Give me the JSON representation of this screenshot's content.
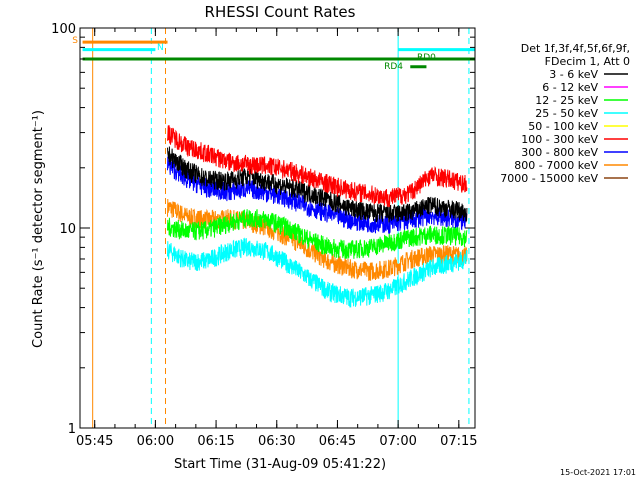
{
  "chart_data": {
    "type": "line",
    "title": "RHESSI Count Rates",
    "xlabel": "Start Time (31-Aug-09 05:41:22)",
    "ylabel": "Count Rate (s⁻¹ detector segment⁻¹)",
    "y_scale": "log",
    "ylim": [
      1,
      100
    ],
    "xlim": [
      "05:41:22",
      "07:19:00"
    ],
    "x_ticks": [
      "05:45",
      "06:00",
      "06:15",
      "06:30",
      "06:45",
      "07:00",
      "07:15"
    ],
    "y_ticks": [
      "1",
      "10",
      "100"
    ],
    "footer_date": "15-Oct-2021 17:01",
    "legend_header": [
      "Det 1f,3f,4f,5f,6f,9f,",
      "FDecim 1, Att 0"
    ],
    "series": [
      {
        "name": "3 - 6 keV",
        "color": "#000000",
        "x": [
          "06:03",
          "06:08",
          "06:13",
          "06:18",
          "06:23",
          "06:28",
          "06:33",
          "06:38",
          "06:43",
          "06:48",
          "06:53",
          "06:58",
          "07:03",
          "07:08",
          "07:13",
          "07:17"
        ],
        "y": [
          23.5,
          19.5,
          17.5,
          17.3,
          18.2,
          17.0,
          16.0,
          15.0,
          13.8,
          12.6,
          12.0,
          11.8,
          12.0,
          13.0,
          12.5,
          12.0
        ]
      },
      {
        "name": "6 - 12 keV",
        "color": "#ff00ff",
        "x": [],
        "y": []
      },
      {
        "name": "12 - 25 keV",
        "color": "#00ff00",
        "x": [
          "06:03",
          "06:08",
          "06:13",
          "06:18",
          "06:23",
          "06:28",
          "06:33",
          "06:38",
          "06:43",
          "06:48",
          "06:53",
          "06:58",
          "07:03",
          "07:08",
          "07:13",
          "07:17"
        ],
        "y": [
          10.2,
          9.6,
          9.8,
          10.6,
          11.3,
          11.0,
          10.0,
          8.8,
          8.0,
          7.8,
          8.0,
          8.5,
          9.0,
          9.3,
          9.2,
          9.0
        ]
      },
      {
        "name": "25 - 50 keV",
        "color": "#00ffff",
        "x": [
          "06:03",
          "06:08",
          "06:13",
          "06:18",
          "06:23",
          "06:28",
          "06:33",
          "06:38",
          "06:43",
          "06:48",
          "06:53",
          "06:58",
          "07:03",
          "07:08",
          "07:13",
          "07:17"
        ],
        "y": [
          7.8,
          6.8,
          6.9,
          7.7,
          8.1,
          7.6,
          6.6,
          5.6,
          4.8,
          4.5,
          4.6,
          4.9,
          5.6,
          6.3,
          6.7,
          7.0
        ]
      },
      {
        "name": "50 - 100 keV",
        "color": "#ffff00",
        "x": [],
        "y": []
      },
      {
        "name": "100 - 300 keV",
        "color": "#ff0000",
        "x": [
          "06:03",
          "06:08",
          "06:13",
          "06:18",
          "06:23",
          "06:28",
          "06:33",
          "06:38",
          "06:43",
          "06:48",
          "06:53",
          "06:58",
          "07:03",
          "07:08",
          "07:13",
          "07:17"
        ],
        "y": [
          30.0,
          25.5,
          23.5,
          21.5,
          20.8,
          20.5,
          19.5,
          18.0,
          16.6,
          15.5,
          14.8,
          14.2,
          15.0,
          18.5,
          17.5,
          16.5
        ]
      },
      {
        "name": "300 - 800 keV",
        "color": "#0000ff",
        "x": [
          "06:03",
          "06:08",
          "06:13",
          "06:18",
          "06:23",
          "06:28",
          "06:33",
          "06:38",
          "06:43",
          "06:48",
          "06:53",
          "06:58",
          "07:03",
          "07:08",
          "07:13",
          "07:17"
        ],
        "y": [
          20.8,
          17.5,
          15.8,
          15.2,
          15.8,
          15.0,
          14.0,
          12.8,
          11.8,
          11.0,
          10.6,
          10.5,
          11.0,
          11.6,
          11.2,
          10.8
        ]
      },
      {
        "name": "800 - 7000 keV",
        "color": "#ff8800",
        "x": [
          "06:03",
          "06:08",
          "06:13",
          "06:18",
          "06:23",
          "06:28",
          "06:33",
          "06:38",
          "06:43",
          "06:48",
          "06:53",
          "06:58",
          "07:03",
          "07:08",
          "07:13",
          "07:17"
        ],
        "y": [
          12.8,
          11.4,
          11.0,
          11.2,
          10.8,
          10.0,
          9.0,
          7.8,
          6.8,
          6.3,
          6.1,
          6.3,
          7.0,
          7.4,
          7.4,
          7.2
        ]
      },
      {
        "name": "7000 - 15000 keV",
        "color": "#8b4513",
        "x": [],
        "y": []
      }
    ],
    "annotations": [
      {
        "label": "S",
        "color": "#ff8800",
        "x_start": "05:42",
        "x_end": "06:03",
        "y": 85
      },
      {
        "label": "N",
        "color": "#00ffff",
        "x_start": "05:42",
        "x_end": "06:00",
        "y": 78
      },
      {
        "label": "",
        "color": "#00ffff",
        "x_start": "07:00",
        "x_end": "07:19",
        "y": 78
      },
      {
        "label": "",
        "color": "#008800",
        "x_start": "05:42",
        "x_end": "07:19",
        "y": 70
      },
      {
        "label": "RD4",
        "color": "#008800",
        "x_start": "07:03",
        "x_end": "07:07",
        "y": 64
      },
      {
        "label": "RD0",
        "color": "#008800",
        "x_start": "",
        "x_end": "",
        "y": 0
      }
    ],
    "vertical_lines": [
      {
        "x": "05:41:22",
        "color": "#00ffff",
        "style": "solid"
      },
      {
        "x": "05:44:30",
        "color": "#ff8800",
        "style": "solid"
      },
      {
        "x": "05:59:00",
        "color": "#00ffff",
        "style": "dashed"
      },
      {
        "x": "06:02:30",
        "color": "#ff8800",
        "style": "dashed"
      },
      {
        "x": "07:00:00",
        "color": "#00ffff",
        "style": "solid"
      },
      {
        "x": "07:17:30",
        "color": "#00ffff",
        "style": "dashed"
      }
    ]
  }
}
